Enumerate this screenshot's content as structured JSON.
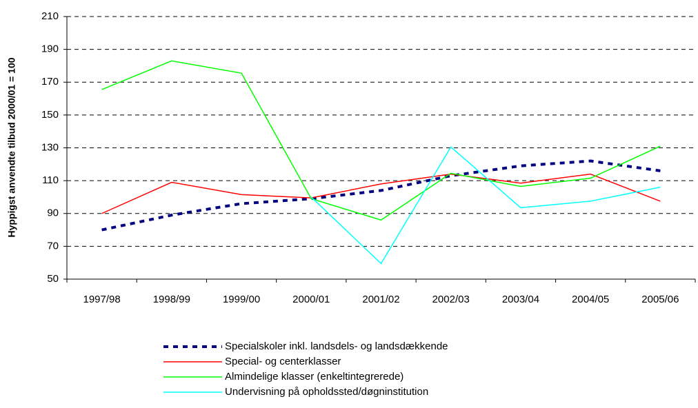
{
  "chart_data": {
    "type": "line",
    "y_axis_label": "Hyppigst anvendte tilbud 2000/01 = 100",
    "categories": [
      "1997/98",
      "1998/99",
      "1999/00",
      "2000/01",
      "2001/02",
      "2002/03",
      "2003/04",
      "2004/05",
      "2005/06"
    ],
    "series": [
      {
        "name": "Specialskoler inkl. landsdels- og landsdækkende",
        "color": "#000080",
        "dashed": true,
        "values": [
          80,
          89,
          96,
          99,
          104,
          113,
          119,
          122,
          116
        ]
      },
      {
        "name": "Special- og centerklasser",
        "color": "#ff0000",
        "values": [
          90,
          109,
          101.5,
          99.5,
          108,
          114,
          108.5,
          114,
          97.5
        ]
      },
      {
        "name": "Almindelige klasser (enkeltintegrerede)",
        "color": "#00ff00",
        "values": [
          165.5,
          183,
          175.5,
          99,
          86,
          114.5,
          106.5,
          111.5,
          131
        ]
      },
      {
        "name": "Undervisning på opholdssted/døgninstitution",
        "color": "#00ffff",
        "values": [
          null,
          null,
          null,
          100,
          59.5,
          130.5,
          93.5,
          97.5,
          106
        ]
      }
    ],
    "ylim": [
      50,
      210
    ],
    "yticks": [
      50,
      70,
      90,
      110,
      130,
      150,
      170,
      190,
      210
    ],
    "grid": true,
    "legend": "bottom"
  }
}
